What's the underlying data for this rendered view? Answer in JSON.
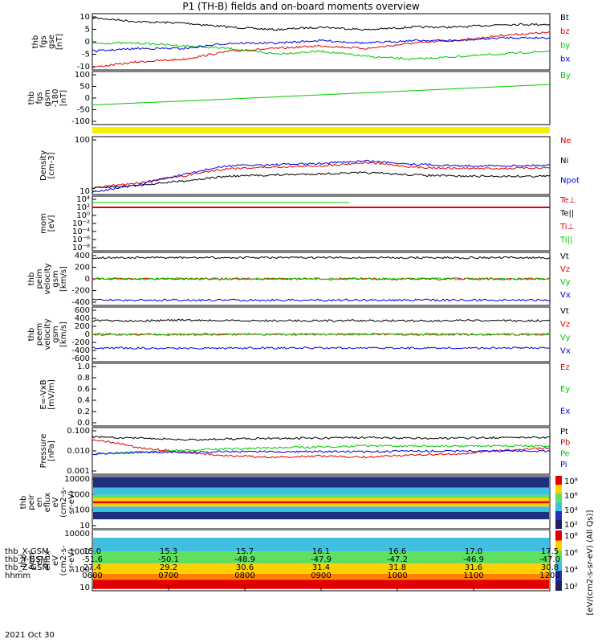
{
  "title": "P1 (TH-B) fields and on-board moments overview",
  "colors": {
    "black": "#000000",
    "red": "#e00000",
    "green": "#00c800",
    "blue": "#0000e0",
    "yellow": "#f5f000"
  },
  "footer": {
    "rows": [
      {
        "label": "thb_X-GSM",
        "values": [
          "15.0",
          "15.3",
          "15.7",
          "16.1",
          "16.6",
          "17.0",
          "17.5"
        ]
      },
      {
        "label": "thb_Y-GSM",
        "values": [
          "-51.6",
          "-50.1",
          "-48.9",
          "-47.9",
          "-47.2",
          "-46.9",
          "-47.0"
        ]
      },
      {
        "label": "thb_Z-GSM",
        "values": [
          "27.4",
          "29.2",
          "30.6",
          "31.4",
          "31.8",
          "31.6",
          "30.8"
        ]
      },
      {
        "label": "hhmm",
        "values": [
          "0600",
          "0700",
          "0800",
          "0900",
          "1000",
          "1100",
          "1200"
        ]
      }
    ],
    "date": "2021 Oct 30"
  },
  "colorbar": {
    "label": "[eV/(cm2-s-sr-eV) (All Qs)]"
  },
  "chart_data": [
    {
      "type": "line",
      "ylabel": [
        "thb",
        "fgs",
        "gse",
        "[nT]"
      ],
      "yticks": [
        "10",
        "5",
        "0",
        "-5",
        "-10"
      ],
      "ylim": [
        -10,
        11
      ],
      "series": [
        {
          "name": "Bt",
          "color": "black",
          "values": [
            9.5,
            8,
            7.5,
            6,
            5,
            6,
            5,
            6,
            6,
            7,
            7
          ]
        },
        {
          "name": "bz",
          "color": "red",
          "values": [
            -9,
            -7,
            -6,
            -3,
            -2,
            -1,
            -2,
            0,
            1,
            3,
            4
          ]
        },
        {
          "name": "by",
          "color": "green",
          "values": [
            0,
            0,
            -1,
            -2,
            -4,
            -3,
            -5,
            -6,
            -5,
            -4,
            -3
          ]
        },
        {
          "name": "bx",
          "color": "blue",
          "values": [
            -3,
            -2,
            -2,
            0,
            0,
            1,
            0,
            1,
            1,
            2,
            2
          ]
        }
      ]
    },
    {
      "type": "line",
      "ylabel": [
        "thb",
        "fgs",
        "gsm",
        "-180",
        "[nT]"
      ],
      "yticks": [
        "100",
        "50",
        "0",
        "-50",
        "-100"
      ],
      "ylim": [
        -130,
        100
      ],
      "series": [
        {
          "name": "By",
          "color": "green",
          "values": [
            -45,
            -36,
            -28,
            -19,
            -10,
            -1,
            8,
            17,
            26,
            35,
            44
          ]
        }
      ]
    },
    {
      "type": "line",
      "ylabel": [
        "Density",
        "[cm-3]"
      ],
      "yticks": [
        "100",
        "10"
      ],
      "log": true,
      "series": [
        {
          "name": "Ne",
          "color": "red",
          "values": [
            4,
            6,
            10,
            18,
            20,
            22,
            28,
            20,
            18,
            18,
            19
          ]
        },
        {
          "name": "Ni",
          "color": "black",
          "values": [
            4,
            5,
            7,
            10,
            11,
            12,
            13,
            11,
            10,
            10,
            10
          ]
        },
        {
          "name": "Npot",
          "color": "blue",
          "values": [
            3,
            5,
            11,
            22,
            24,
            26,
            32,
            25,
            22,
            22,
            23
          ]
        }
      ]
    },
    {
      "type": "line",
      "ylabel": [
        "mom",
        "[eV]"
      ],
      "yticks": [
        "10⁴",
        "10²",
        "10⁰",
        "10⁻²",
        "10⁻⁴",
        "10⁻⁶",
        "10⁻⁸"
      ],
      "series": [
        {
          "name": "Te⊥",
          "color": "red",
          "values": []
        },
        {
          "name": "Te||",
          "color": "black",
          "values": []
        },
        {
          "name": "Ti⊥",
          "color": "red",
          "values": []
        },
        {
          "name": "Ti||",
          "color": "green",
          "values": []
        }
      ]
    },
    {
      "type": "line",
      "ylabel": [
        "thb",
        "peim",
        "velocity",
        "gsm",
        "[km/s]"
      ],
      "yticks": [
        "400",
        "200",
        "0",
        "-200",
        "-400"
      ],
      "ylim": [
        -400,
        400
      ],
      "series": [
        {
          "name": "Vt",
          "color": "black",
          "values": [
            320,
            320,
            320,
            320,
            320,
            320,
            320,
            320,
            320,
            320,
            320
          ]
        },
        {
          "name": "Vz",
          "color": "red",
          "values": [
            0,
            0,
            0,
            0,
            0,
            0,
            0,
            0,
            0,
            0,
            0
          ]
        },
        {
          "name": "Vy",
          "color": "green",
          "values": [
            0,
            0,
            0,
            0,
            0,
            0,
            0,
            0,
            0,
            0,
            0
          ]
        },
        {
          "name": "Vx",
          "color": "blue",
          "values": [
            -320,
            -320,
            -320,
            -320,
            -320,
            -320,
            -320,
            -320,
            -320,
            -320,
            -320
          ]
        }
      ]
    },
    {
      "type": "line",
      "ylabel": [
        "thb",
        "peem",
        "velocity",
        "gsm",
        "[km/s]"
      ],
      "yticks": [
        "600",
        "400",
        "200",
        "0",
        "-200",
        "-400",
        "-600"
      ],
      "ylim": [
        -600,
        600
      ],
      "series": [
        {
          "name": "Vt",
          "color": "black",
          "values": [
            300,
            300,
            310,
            300,
            300,
            300,
            300,
            300,
            300,
            300,
            300
          ]
        },
        {
          "name": "Vz",
          "color": "red",
          "values": [
            0,
            0,
            0,
            0,
            0,
            0,
            0,
            0,
            0,
            0,
            0
          ]
        },
        {
          "name": "Vy",
          "color": "green",
          "values": [
            0,
            0,
            0,
            0,
            0,
            0,
            0,
            0,
            0,
            0,
            0
          ]
        },
        {
          "name": "Vx",
          "color": "blue",
          "values": [
            -300,
            -300,
            -310,
            -300,
            -300,
            -300,
            -300,
            -300,
            -300,
            -300,
            -300
          ]
        }
      ]
    },
    {
      "type": "line",
      "ylabel": [
        "E=-VxB",
        "[mV/m]"
      ],
      "yticks": [
        "1.0",
        "0.8",
        "0.6",
        "0.4",
        "0.2",
        "0.0"
      ],
      "ylim": [
        0,
        1
      ],
      "series": [
        {
          "name": "Ez",
          "color": "red",
          "values": []
        },
        {
          "name": "Ey",
          "color": "green",
          "values": []
        },
        {
          "name": "Ex",
          "color": "blue",
          "values": []
        }
      ]
    },
    {
      "type": "line",
      "ylabel": [
        "Pressure",
        "[nPa]"
      ],
      "yticks": [
        "0.100",
        "0.010",
        "0.001"
      ],
      "log": true,
      "series": [
        {
          "name": "Pt",
          "color": "black",
          "values": [
            0.07,
            0.06,
            0.05,
            0.055,
            0.06,
            0.06,
            0.065,
            0.06,
            0.06,
            0.065,
            0.065
          ]
        },
        {
          "name": "Pb",
          "color": "red",
          "values": [
            0.05,
            0.02,
            0.012,
            0.008,
            0.007,
            0.008,
            0.007,
            0.009,
            0.01,
            0.015,
            0.02
          ]
        },
        {
          "name": "Pe",
          "color": "green",
          "values": [
            0.01,
            0.012,
            0.015,
            0.018,
            0.02,
            0.022,
            0.025,
            0.025,
            0.024,
            0.025,
            0.025
          ]
        },
        {
          "name": "Pi",
          "color": "blue",
          "values": [
            0.01,
            0.012,
            0.012,
            0.013,
            0.013,
            0.013,
            0.013,
            0.014,
            0.014,
            0.014,
            0.014
          ]
        }
      ]
    },
    {
      "type": "heatmap",
      "ylabel": [
        "thb",
        "peir",
        "en",
        "eflux",
        "eV",
        "(cm2-s-",
        "sr-eV)"
      ],
      "yticks": [
        "10000",
        "1000",
        "100",
        "10"
      ],
      "log": true,
      "colorbar_ticks": [
        "10⁸",
        "10⁶",
        "10⁴",
        "10²"
      ]
    },
    {
      "type": "heatmap",
      "ylabel": [
        "thb",
        "peer",
        "en",
        "eflux",
        "eV",
        "(cm2-s-",
        "sr-eV)"
      ],
      "yticks": [
        "10000",
        "1000",
        "100",
        "10"
      ],
      "log": true,
      "colorbar_ticks": [
        "10⁸",
        "10⁶",
        "10⁴",
        "10²"
      ]
    }
  ]
}
